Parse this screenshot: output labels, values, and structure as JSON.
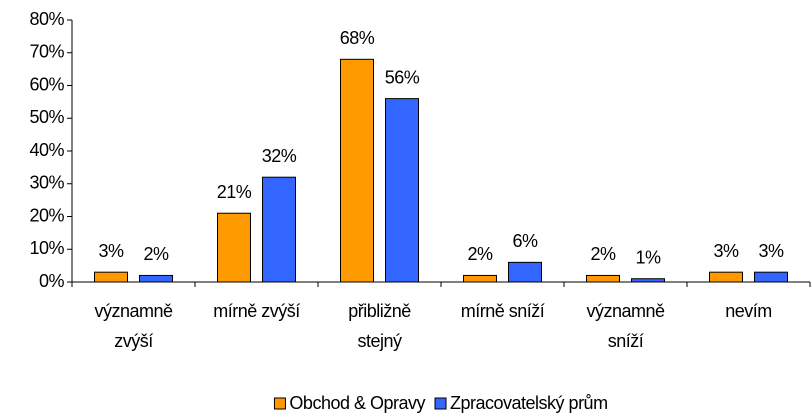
{
  "chart_data": {
    "type": "bar",
    "categories": [
      "významně zvýší",
      "mírně zvýší",
      "přibližně stejný",
      "mírně sníží",
      "významně sníží",
      "nevím"
    ],
    "series": [
      {
        "name": "Obchod & Opravy",
        "color": "#ff9900",
        "values": [
          3,
          21,
          68,
          2,
          2,
          3
        ],
        "value_labels": [
          "3%",
          "21%",
          "68%",
          "2%",
          "2%",
          "3%"
        ]
      },
      {
        "name": "Zpracovatelský prům",
        "color": "#3366ff",
        "values": [
          2,
          32,
          56,
          6,
          1,
          3
        ],
        "value_labels": [
          "2%",
          "32%",
          "56%",
          "6%",
          "1%",
          "3%"
        ]
      }
    ],
    "ylim": [
      0,
      80
    ],
    "yticks": [
      {
        "value": 0,
        "label": "0%"
      },
      {
        "value": 10,
        "label": "10%"
      },
      {
        "value": 20,
        "label": "20%"
      },
      {
        "value": 30,
        "label": "30%"
      },
      {
        "value": 40,
        "label": "40%"
      },
      {
        "value": 50,
        "label": "50%"
      },
      {
        "value": 60,
        "label": "60%"
      },
      {
        "value": 70,
        "label": "70%"
      },
      {
        "value": 80,
        "label": "80%"
      }
    ],
    "legend": "bottom"
  }
}
